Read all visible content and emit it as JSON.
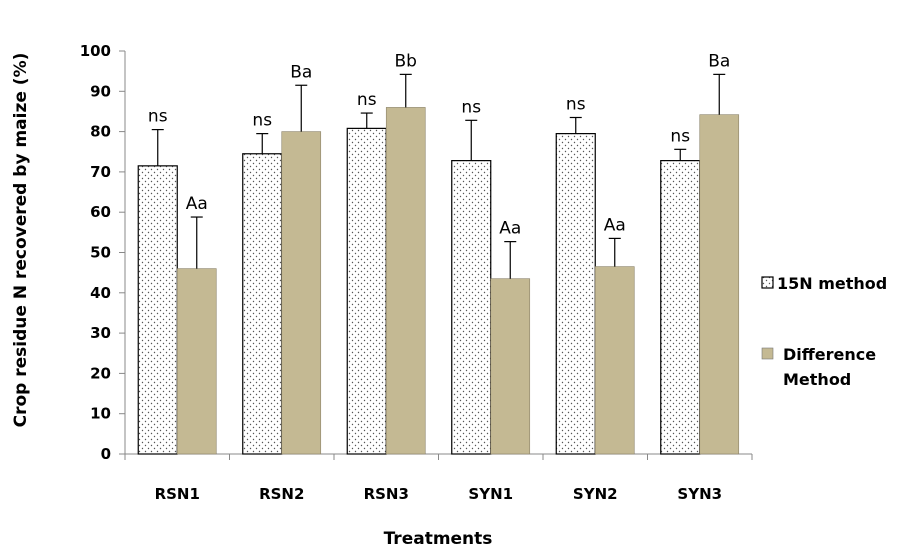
{
  "chart_data": {
    "type": "bar",
    "xlabel": "Treatments",
    "ylabel": "Crop residue N recovered by maize   (%)",
    "ylim": [
      0,
      100
    ],
    "yticks": [
      0,
      10,
      20,
      30,
      40,
      50,
      60,
      70,
      80,
      90,
      100
    ],
    "categories": [
      "RSN1",
      "RSN2",
      "RSN3",
      "SYN1",
      "SYN2",
      "SYN3"
    ],
    "series": [
      {
        "name": "15N method",
        "color": "#ffffff",
        "pattern": "dots",
        "values": [
          71.5,
          74.5,
          80.8,
          72.8,
          79.5,
          72.8
        ],
        "errors": [
          9.0,
          5.0,
          3.8,
          10.0,
          4.0,
          2.8
        ],
        "labels": [
          "ns",
          "ns",
          "ns",
          "ns",
          "ns",
          "ns"
        ]
      },
      {
        "name": "Difference Method",
        "color": "#c4b993",
        "pattern": "solid",
        "values": [
          46.0,
          80.0,
          86.0,
          43.5,
          46.5,
          84.2
        ],
        "errors": [
          12.8,
          11.5,
          8.2,
          9.2,
          7.0,
          10.0
        ],
        "labels": [
          "Aa",
          "Ba",
          "Bb",
          "Aa",
          "Aa",
          "Ba"
        ]
      }
    ],
    "legend": {
      "position": "right",
      "entries": [
        "15N method",
        "Difference Method"
      ]
    },
    "grid": false
  }
}
